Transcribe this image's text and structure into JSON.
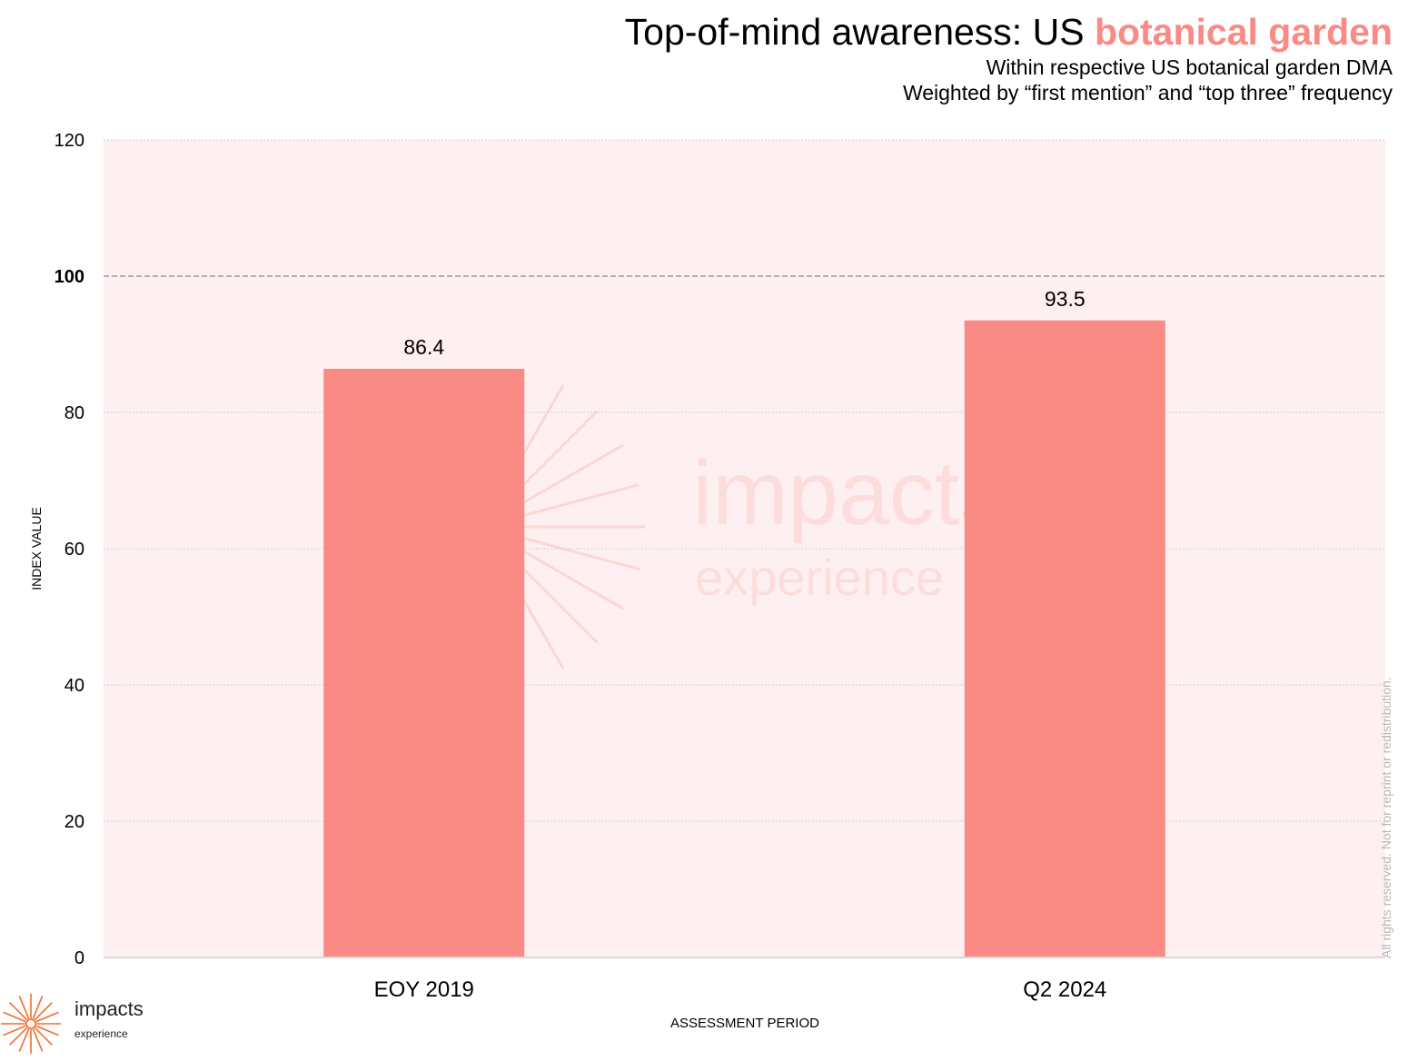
{
  "title": {
    "prefix": "Top-of-mind awareness: US ",
    "highlight": "botanical garden"
  },
  "subtitle_lines": [
    "Within respective US botanical garden DMA",
    "Weighted by “first mention” and “top three” frequency"
  ],
  "copyright": "All rights reserved. Not for reprint or redistribution.",
  "brand": {
    "name": "impacts",
    "sub": "experience",
    "watermark_name": "impacts",
    "watermark_sub": "experience",
    "icon": "sunburst-logo-icon"
  },
  "colors": {
    "bar": "#f98a84",
    "plot_bg": "#fef0f0",
    "accent": "#f98a84",
    "watermark": "#f98a84",
    "brand_logo": "#f26d2d"
  },
  "chart_data": {
    "type": "bar",
    "categories": [
      "EOY 2019",
      "Q2 2024"
    ],
    "values": [
      86.4,
      93.5
    ],
    "data_labels": [
      "86.4",
      "93.5"
    ],
    "xlabel": "ASSESSMENT PERIOD",
    "ylabel": "INDEX VALUE",
    "ylim": [
      0,
      120
    ],
    "yticks": [
      0,
      20,
      40,
      60,
      80,
      100,
      120
    ],
    "reference_line": 100,
    "grid": true,
    "legend": "none"
  }
}
